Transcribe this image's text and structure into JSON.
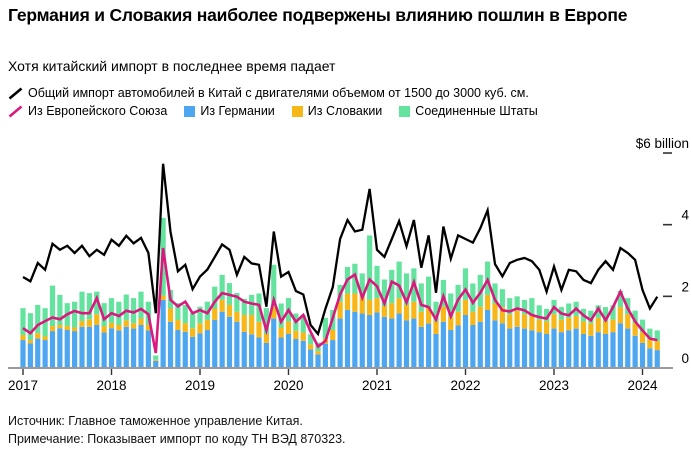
{
  "header": {
    "title": "Германия и Словакия наиболее подвержены влиянию пошлин в Европе",
    "subtitle": "Хотя китайский импорт в последнее время падает"
  },
  "legend": {
    "total_label": "Общий импорт автомобилей в Китай с двигателями объемом от 1500 до 3000 куб. см.",
    "eu_label": "Из Европейского Союза",
    "germany_label": "Из Германии",
    "slovakia_label": "Из Словакии",
    "us_label": "Соединенные Штаты"
  },
  "colors": {
    "total": "#000000",
    "eu": "#d9197d",
    "germany": "#4da6f0",
    "slovakia": "#f7b718",
    "us": "#63e39e",
    "axis_line": "#9a9a9a",
    "tick": "#333333"
  },
  "footer": {
    "source": "Источник: Главное таможенное управление Китая.",
    "note": "Примечание: Показывает импорт по коду ТН ВЭД 870323."
  },
  "chart_data": {
    "type": "bar",
    "subtype": "stacked-bars-with-lines",
    "title": "Китайский импорт автомобилей (1500–3000 куб. см)",
    "unit": "$ billion",
    "start_month": "2017-01",
    "end_month": "2024-03",
    "x_ticks": [
      "2017",
      "2018",
      "2019",
      "2020",
      "2021",
      "2022",
      "2023",
      "2024"
    ],
    "y_axis": {
      "min": 0,
      "max": 6,
      "ticks": [
        0,
        2,
        4,
        6
      ],
      "tick_labels": [
        "0",
        "2",
        "4"
      ],
      "top_label": "$6 billion"
    },
    "grid": false,
    "legend_position": "top",
    "series": [
      {
        "name": "Из Германии",
        "render": "bar",
        "color": "#4da6f0",
        "values": [
          0.78,
          0.69,
          0.82,
          0.78,
          1.03,
          1.11,
          1.06,
          1.03,
          1.15,
          1.15,
          1.2,
          0.99,
          1.11,
          1.05,
          1.15,
          1.1,
          1.2,
          1.05,
          0.2,
          1.9,
          1.29,
          1.06,
          1.01,
          0.87,
          0.97,
          1.06,
          1.34,
          1.57,
          1.43,
          1.29,
          1.01,
          0.94,
          0.85,
          0.7,
          1.38,
          0.85,
          0.95,
          0.81,
          0.76,
          0.52,
          0.38,
          0.68,
          0.78,
          1.38,
          1.62,
          1.57,
          1.52,
          1.48,
          1.55,
          1.43,
          1.38,
          1.52,
          1.33,
          1.38,
          1.15,
          1.24,
          0.95,
          1.29,
          1.06,
          1.19,
          1.48,
          1.2,
          1.29,
          1.62,
          1.33,
          1.25,
          1.1,
          1.15,
          1.1,
          1.05,
          1.0,
          0.95,
          1.1,
          1.0,
          1.05,
          1.1,
          0.95,
          0.9,
          1.0,
          0.95,
          1.0,
          1.25,
          1.1,
          0.9,
          0.7,
          0.55,
          0.5
        ]
      },
      {
        "name": "Из Словакии",
        "render": "bar",
        "color": "#f7b718",
        "values": [
          0.14,
          0.09,
          0.15,
          0.1,
          0.14,
          0.09,
          0.11,
          0.1,
          0.16,
          0.21,
          0.3,
          0.18,
          0.15,
          0.15,
          0.18,
          0.15,
          0.18,
          0.15,
          0.03,
          0.12,
          0.37,
          0.28,
          0.24,
          0.24,
          0.28,
          0.28,
          0.32,
          0.33,
          0.33,
          0.28,
          0.47,
          0.54,
          0.44,
          0.25,
          0.33,
          0.28,
          0.35,
          0.23,
          0.23,
          0.14,
          0.09,
          0.14,
          0.28,
          0.47,
          0.46,
          0.51,
          0.47,
          0.42,
          0.4,
          0.3,
          0.43,
          0.43,
          0.43,
          0.47,
          0.42,
          0.43,
          0.35,
          0.42,
          0.37,
          0.38,
          0.42,
          0.37,
          0.42,
          0.42,
          0.47,
          0.45,
          0.4,
          0.45,
          0.4,
          0.4,
          0.35,
          0.35,
          0.4,
          0.35,
          0.35,
          0.35,
          0.35,
          0.35,
          0.4,
          0.35,
          0.35,
          0.45,
          0.4,
          0.35,
          0.3,
          0.25,
          0.25
        ]
      },
      {
        "name": "Соединенные Штаты",
        "render": "bar",
        "color": "#63e39e",
        "values": [
          0.75,
          0.75,
          0.79,
          0.79,
          1.13,
          0.84,
          0.64,
          0.72,
          0.82,
          0.73,
          0.63,
          0.64,
          0.69,
          0.65,
          0.72,
          0.7,
          0.75,
          0.65,
          0.12,
          2.17,
          0.52,
          0.47,
          0.51,
          0.42,
          0.46,
          0.51,
          0.61,
          0.7,
          0.61,
          0.52,
          0.45,
          0.56,
          0.79,
          0.72,
          1.17,
          0.67,
          0.65,
          0.48,
          0.49,
          0.28,
          0.24,
          0.58,
          0.56,
          0.47,
          0.74,
          0.83,
          0.65,
          1.8,
          0.9,
          0.74,
          0.93,
          1.02,
          0.88,
          0.93,
          0.79,
          0.88,
          0.55,
          0.75,
          0.65,
          0.75,
          0.88,
          0.79,
          0.89,
          0.93,
          0.56,
          0.5,
          0.45,
          0.4,
          0.4,
          0.5,
          0.4,
          0.35,
          0.4,
          0.35,
          0.4,
          0.4,
          0.35,
          0.35,
          0.35,
          0.4,
          0.4,
          0.45,
          0.45,
          0.35,
          0.35,
          0.3,
          0.3
        ]
      },
      {
        "name": "Из Европейского Союза",
        "render": "line",
        "color": "#d9197d",
        "width": 2.6,
        "values": [
          1.11,
          0.97,
          1.2,
          1.31,
          1.41,
          1.36,
          1.5,
          1.59,
          1.53,
          1.53,
          1.95,
          1.36,
          1.53,
          1.45,
          1.6,
          1.55,
          1.65,
          1.5,
          0.42,
          3.35,
          1.9,
          1.72,
          1.85,
          1.53,
          1.62,
          1.53,
          1.85,
          2.09,
          2.04,
          1.99,
          1.85,
          1.8,
          1.76,
          1.05,
          1.9,
          1.29,
          1.62,
          1.29,
          1.48,
          1.01,
          0.6,
          0.75,
          1.4,
          2.05,
          2.47,
          2.61,
          1.96,
          2.47,
          2.28,
          1.8,
          2.41,
          2.3,
          1.83,
          2.4,
          1.76,
          1.7,
          1.35,
          2.0,
          1.44,
          1.91,
          2.19,
          1.82,
          2.1,
          2.46,
          1.9,
          1.61,
          1.58,
          1.66,
          1.61,
          1.48,
          1.42,
          1.38,
          1.7,
          1.52,
          1.47,
          1.66,
          1.47,
          1.33,
          1.66,
          1.33,
          1.7,
          2.13,
          1.66,
          1.3,
          1.05,
          0.82,
          0.78
        ]
      },
      {
        "name": "Общий импорт автомобилей в Китай с двигателями объемом от 1500 до 3000 куб. см.",
        "render": "line",
        "color": "#000000",
        "width": 2.3,
        "values": [
          2.54,
          2.42,
          2.93,
          2.74,
          3.47,
          3.3,
          3.41,
          3.21,
          3.41,
          3.12,
          3.3,
          3.16,
          3.58,
          3.41,
          3.69,
          3.48,
          3.63,
          3.21,
          1.53,
          5.7,
          3.8,
          2.7,
          2.88,
          2.2,
          2.55,
          2.75,
          3.1,
          3.45,
          3.3,
          2.6,
          3.1,
          2.92,
          2.88,
          1.71,
          3.81,
          2.55,
          2.68,
          2.15,
          2.05,
          1.2,
          0.95,
          1.65,
          2.26,
          3.6,
          4.13,
          3.81,
          3.86,
          5.0,
          3.3,
          3.1,
          3.6,
          4.1,
          3.4,
          4.13,
          2.8,
          3.7,
          2.1,
          3.95,
          3.05,
          3.7,
          3.6,
          3.5,
          3.9,
          4.4,
          2.9,
          2.56,
          2.93,
          3.02,
          3.07,
          2.98,
          2.74,
          2.13,
          2.83,
          2.18,
          2.74,
          2.7,
          2.46,
          2.37,
          2.74,
          2.98,
          2.74,
          3.35,
          3.21,
          3.02,
          2.18,
          1.66,
          1.99
        ]
      }
    ]
  }
}
